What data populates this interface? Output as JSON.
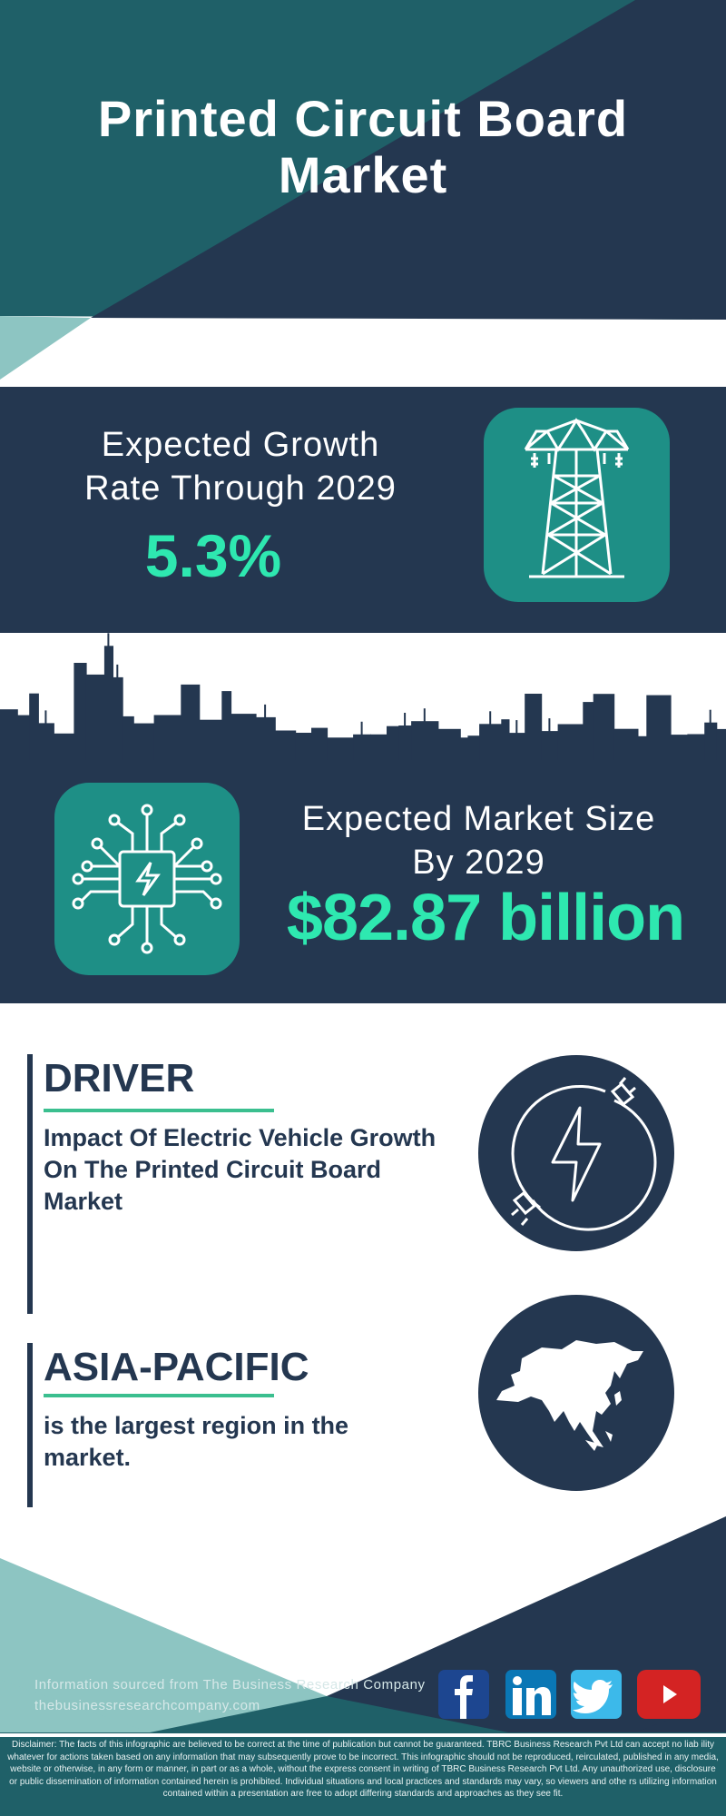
{
  "header": {
    "title_line1": "Printed Circuit Board",
    "title_line2": "Market"
  },
  "growth": {
    "label_line1": "Expected Growth",
    "label_line2": "Rate Through 2029",
    "value": "5.3%",
    "icon": "power-tower-icon"
  },
  "market_size": {
    "label_line1": "Expected Market Size",
    "label_line2": "By 2029",
    "value": "$82.87 billion",
    "icon": "circuit-chip-icon"
  },
  "driver": {
    "heading": "DRIVER",
    "text": "Impact Of Electric Vehicle Growth On The Printed Circuit Board Market",
    "icon": "electric-plug-bolt-icon"
  },
  "region": {
    "heading": "ASIA-PACIFIC",
    "text": "is the largest region in the market.",
    "icon": "asia-map-icon"
  },
  "footer": {
    "source": "Information sourced from The Business Research Company",
    "website": "thebusinessresearchcompany.com",
    "social": [
      {
        "name": "facebook",
        "glyph": "f",
        "color": "#1d4690"
      },
      {
        "name": "linkedin",
        "glyph": "in",
        "color": "#0a77b5"
      },
      {
        "name": "twitter",
        "glyph": "twitter-bird",
        "color": "#3cb9ea"
      },
      {
        "name": "youtube",
        "glyph": "play",
        "color": "#d42323"
      }
    ],
    "disclaimer": "Disclaimer: The facts of this infographic are believed to be correct at the time of publication but cannot be guaranteed. TBRC Business Research Pvt Ltd can accept no liab ility whatever for actions taken based on any information that may subsequently prove to be incorrect. This infographic should not be reproduced, reirculated, published in any media, website or otherwise, in any form or manner, in part or as a whole, without the express consent in writing of TBRC Business Research Pvt Ltd. Any unauthorized use, disclosure or public dissemination of information contained herein is prohibited. Individual situations and local practices and standards may vary, so viewers and othe rs utilizing information contained within a presentation are free to adopt differing standards and approaches as they see fit."
  },
  "colors": {
    "navy": "#243750",
    "teal": "#1f6068",
    "accent_green": "#2ee8b0",
    "icon_teal": "#1e8f86",
    "light_teal": "#8dc5c2"
  }
}
